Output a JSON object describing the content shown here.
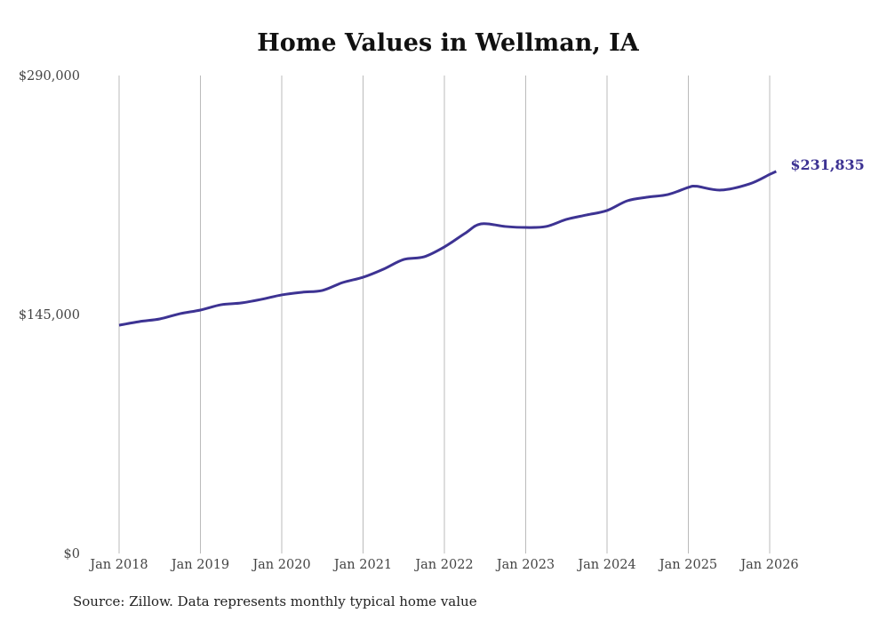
{
  "chart_data": {
    "type": "line",
    "title": "Home Values in Wellman, IA",
    "xlabel": "",
    "ylabel": "",
    "ylim": [
      0,
      290000
    ],
    "xlim": [
      2018,
      2026
    ],
    "y_ticks": [
      {
        "value": 0,
        "label": "$0"
      },
      {
        "value": 145000,
        "label": "$145,000"
      },
      {
        "value": 290000,
        "label": "$290,000"
      }
    ],
    "x_ticks": [
      {
        "value": 2018,
        "label": "Jan 2018"
      },
      {
        "value": 2019,
        "label": "Jan 2019"
      },
      {
        "value": 2020,
        "label": "Jan 2020"
      },
      {
        "value": 2021,
        "label": "Jan 2021"
      },
      {
        "value": 2022,
        "label": "Jan 2022"
      },
      {
        "value": 2023,
        "label": "Jan 2023"
      },
      {
        "value": 2024,
        "label": "Jan 2024"
      },
      {
        "value": 2025,
        "label": "Jan 2025"
      },
      {
        "value": 2026,
        "label": "Jan 2026"
      }
    ],
    "grid": "vertical",
    "series": [
      {
        "name": "Typical home value",
        "color": "#3d3393",
        "x": [
          2018,
          2018.25,
          2018.5,
          2018.75,
          2019,
          2019.25,
          2019.5,
          2019.75,
          2020,
          2020.25,
          2020.5,
          2020.75,
          2021,
          2021.25,
          2021.5,
          2021.75,
          2022,
          2022.25,
          2022.45,
          2022.75,
          2023,
          2023.25,
          2023.5,
          2023.75,
          2024,
          2024.25,
          2024.5,
          2024.75,
          2025,
          2025.1,
          2025.4,
          2025.75,
          2026,
          2026.08
        ],
        "values": [
          138500,
          140700,
          142300,
          145500,
          147700,
          150900,
          152000,
          154200,
          156900,
          158500,
          159600,
          164400,
          167600,
          172500,
          178400,
          180000,
          186000,
          194100,
          200000,
          198400,
          197800,
          198400,
          202700,
          205400,
          208100,
          214000,
          216200,
          217800,
          222100,
          222800,
          220500,
          224200,
          230000,
          231835
        ]
      }
    ],
    "end_label": "$231,835"
  },
  "source": "Source: Zillow. Data represents monthly typical home value"
}
